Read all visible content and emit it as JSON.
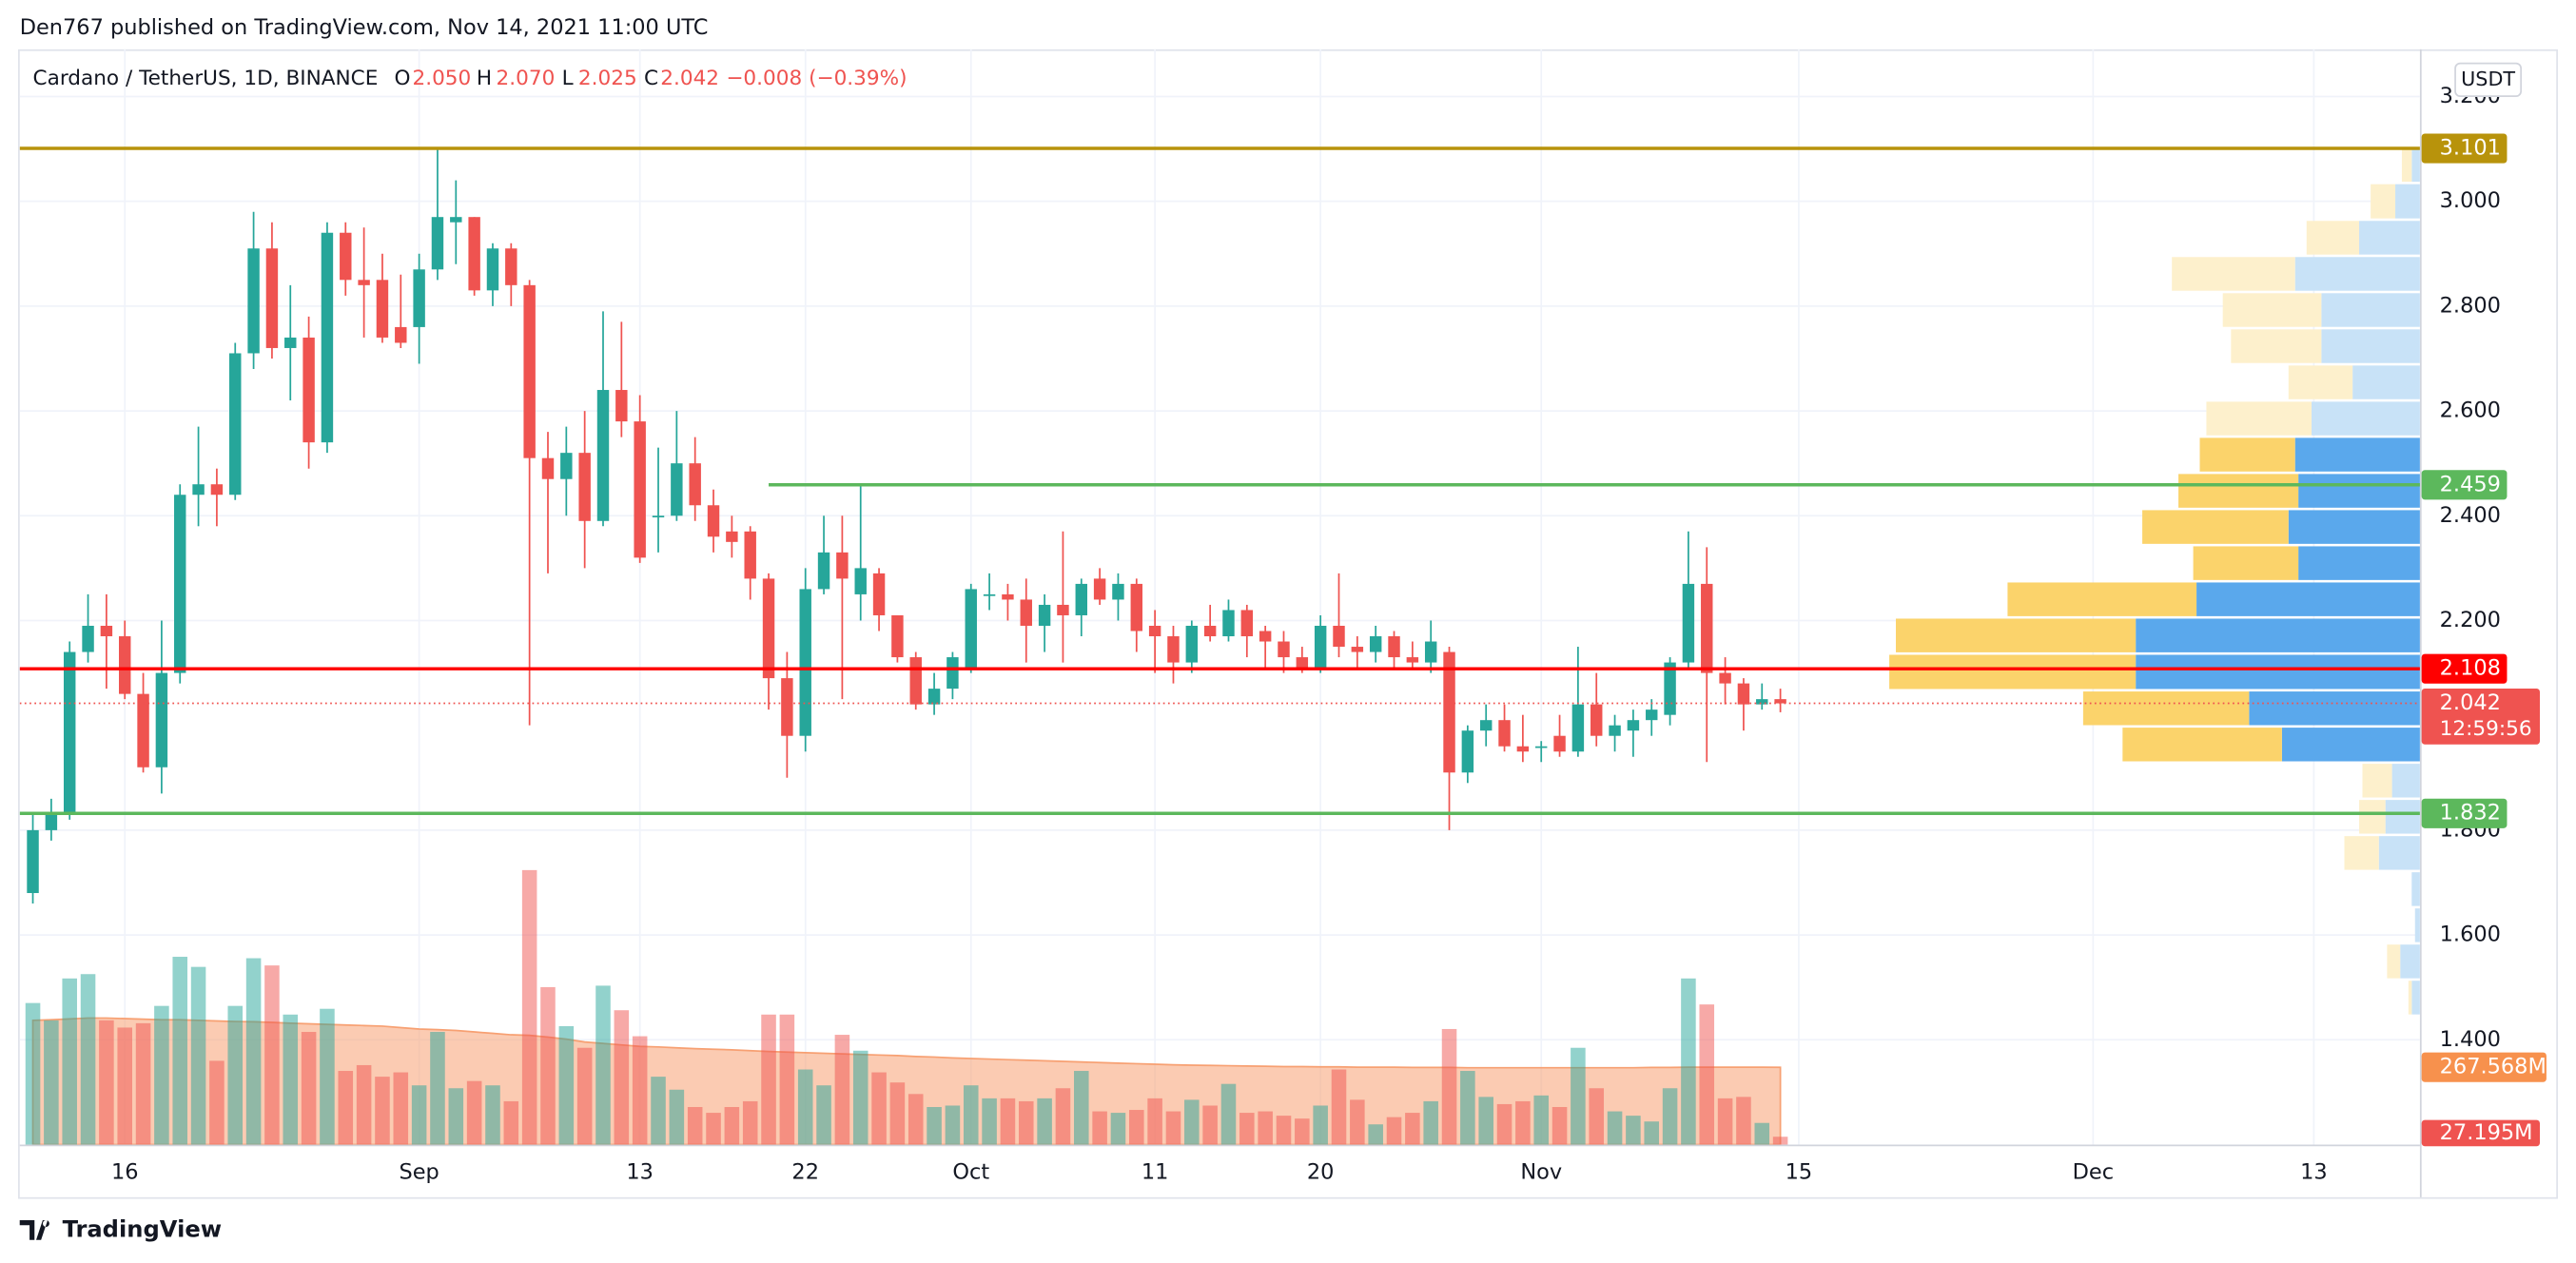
{
  "header": {
    "byline": "Den767 published on TradingView.com, Nov 14, 2021 11:00 UTC",
    "logo": "TradingView",
    "currency": "USDT"
  },
  "chart_data": {
    "type": "candlestick",
    "title": "Cardano / TetherUS, 1D, BINANCE",
    "legend_keys": [
      "O",
      "H",
      "L",
      "C"
    ],
    "legend_values": [
      "2.050",
      "2.070",
      "2.025",
      "2.042"
    ],
    "legend_change": "−0.008 (−0.39%)",
    "countdown": "12:59:56",
    "up_color": "#26a69a",
    "down_color": "#ef5350",
    "categories": [
      null,
      null,
      null,
      null,
      null,
      "16",
      null,
      null,
      null,
      null,
      null,
      null,
      null,
      null,
      null,
      null,
      null,
      null,
      null,
      null,
      null,
      "Sep",
      null,
      null,
      null,
      null,
      null,
      null,
      null,
      null,
      null,
      null,
      null,
      "13",
      null,
      null,
      null,
      null,
      null,
      null,
      null,
      null,
      "22",
      null,
      null,
      null,
      null,
      null,
      null,
      null,
      null,
      "Oct",
      null,
      null,
      null,
      null,
      null,
      null,
      null,
      null,
      null,
      "11",
      null,
      null,
      null,
      null,
      null,
      null,
      null,
      null,
      "20",
      null,
      null,
      null,
      null,
      null,
      null,
      null,
      null,
      null,
      null,
      null,
      "Nov",
      null,
      null,
      null,
      null,
      null,
      null,
      null,
      null,
      null,
      null,
      null,
      null,
      null,
      "15",
      null,
      null,
      null,
      null,
      null,
      null,
      null,
      null,
      null,
      null,
      null,
      null,
      null,
      null,
      null,
      "Dec",
      null,
      null,
      null,
      null,
      null,
      null,
      null,
      null,
      null,
      null,
      null,
      "13",
      null,
      null,
      null,
      null,
      null
    ],
    "open": [
      1.68,
      1.8,
      1.83,
      2.14,
      2.19,
      2.17,
      2.06,
      1.92,
      2.1,
      2.44,
      2.46,
      2.44,
      2.71,
      2.91,
      2.72,
      2.74,
      2.54,
      2.94,
      2.85,
      2.85,
      2.76,
      2.76,
      2.87,
      2.96,
      2.97,
      2.83,
      2.91,
      2.84,
      2.51,
      2.47,
      2.52,
      2.39,
      2.64,
      2.58,
      2.4,
      2.4,
      2.5,
      2.42,
      2.37,
      2.37,
      2.28,
      2.09,
      1.98,
      2.26,
      2.33,
      2.25,
      2.29,
      2.21,
      2.13,
      2.04,
      2.07,
      2.11,
      2.25,
      2.25,
      2.24,
      2.19,
      2.23,
      2.21,
      2.28,
      2.24,
      2.27,
      2.19,
      2.17,
      2.12,
      2.19,
      2.17,
      2.22,
      2.18,
      2.16,
      2.13,
      2.11,
      2.19,
      2.15,
      2.14,
      2.17,
      2.13,
      2.12,
      2.14,
      1.91,
      1.99,
      2.01,
      1.96,
      1.96,
      1.98,
      1.95,
      2.04,
      1.98,
      1.99,
      2.01,
      2.02,
      2.12,
      2.27,
      2.1,
      2.08,
      2.04,
      2.05,
      null,
      null,
      null,
      null,
      null,
      null,
      null,
      null,
      null,
      null,
      null,
      null,
      null,
      null,
      null,
      null,
      null,
      null,
      null,
      null,
      null,
      null,
      null,
      null,
      null,
      null,
      null,
      null,
      null,
      null,
      null,
      null,
      null,
      null
    ],
    "high": [
      1.83,
      1.86,
      2.16,
      2.25,
      2.25,
      2.2,
      2.1,
      2.2,
      2.46,
      2.57,
      2.49,
      2.73,
      2.98,
      2.96,
      2.84,
      2.78,
      2.96,
      2.96,
      2.95,
      2.9,
      2.86,
      2.9,
      3.1,
      3.04,
      2.97,
      2.92,
      2.92,
      2.85,
      2.56,
      2.57,
      2.6,
      2.79,
      2.77,
      2.63,
      2.53,
      2.6,
      2.55,
      2.45,
      2.4,
      2.38,
      2.29,
      2.14,
      2.3,
      2.4,
      2.4,
      2.46,
      2.3,
      2.21,
      2.14,
      2.1,
      2.14,
      2.27,
      2.29,
      2.27,
      2.28,
      2.25,
      2.37,
      2.28,
      2.3,
      2.29,
      2.28,
      2.22,
      2.19,
      2.2,
      2.23,
      2.24,
      2.23,
      2.19,
      2.18,
      2.15,
      2.21,
      2.29,
      2.17,
      2.19,
      2.18,
      2.16,
      2.2,
      2.15,
      2.0,
      2.04,
      2.04,
      2.02,
      1.97,
      2.02,
      2.15,
      2.1,
      2.02,
      2.03,
      2.05,
      2.13,
      2.37,
      2.34,
      2.13,
      2.09,
      2.08,
      2.07,
      null,
      null,
      null,
      null,
      null,
      null,
      null,
      null,
      null,
      null,
      null,
      null,
      null,
      null,
      null,
      null,
      null,
      null,
      null,
      null,
      null,
      null,
      null,
      null,
      null,
      null,
      null,
      null,
      null,
      null,
      null,
      null,
      null,
      null
    ],
    "low": [
      1.66,
      1.78,
      1.82,
      2.12,
      2.07,
      2.05,
      1.91,
      1.87,
      2.08,
      2.38,
      2.38,
      2.43,
      2.68,
      2.7,
      2.62,
      2.49,
      2.52,
      2.82,
      2.74,
      2.73,
      2.72,
      2.69,
      2.85,
      2.88,
      2.82,
      2.8,
      2.8,
      2.0,
      2.29,
      2.4,
      2.3,
      2.38,
      2.55,
      2.31,
      2.33,
      2.39,
      2.39,
      2.33,
      2.32,
      2.24,
      2.03,
      1.9,
      1.95,
      2.25,
      2.05,
      2.2,
      2.18,
      2.12,
      2.03,
      2.02,
      2.05,
      2.1,
      2.22,
      2.2,
      2.12,
      2.14,
      2.12,
      2.17,
      2.23,
      2.2,
      2.14,
      2.1,
      2.08,
      2.1,
      2.16,
      2.16,
      2.13,
      2.11,
      2.1,
      2.1,
      2.1,
      2.13,
      2.11,
      2.12,
      2.11,
      2.11,
      2.1,
      1.8,
      1.89,
      1.96,
      1.95,
      1.93,
      1.93,
      1.94,
      1.94,
      1.96,
      1.95,
      1.94,
      1.98,
      2.0,
      2.11,
      1.93,
      2.04,
      1.99,
      2.03,
      2.025,
      null,
      null,
      null,
      null,
      null,
      null,
      null,
      null,
      null,
      null,
      null,
      null,
      null,
      null,
      null,
      null,
      null,
      null,
      null,
      null,
      null,
      null,
      null,
      null,
      null,
      null,
      null,
      null,
      null,
      null,
      null,
      null,
      null,
      null
    ],
    "close": [
      1.8,
      1.83,
      2.14,
      2.19,
      2.17,
      2.06,
      1.92,
      2.1,
      2.44,
      2.46,
      2.44,
      2.71,
      2.91,
      2.72,
      2.74,
      2.54,
      2.94,
      2.85,
      2.84,
      2.74,
      2.73,
      2.87,
      2.97,
      2.97,
      2.83,
      2.91,
      2.84,
      2.51,
      2.47,
      2.52,
      2.39,
      2.64,
      2.58,
      2.32,
      2.4,
      2.5,
      2.42,
      2.36,
      2.35,
      2.28,
      2.09,
      1.98,
      2.26,
      2.33,
      2.28,
      2.3,
      2.21,
      2.13,
      2.04,
      2.07,
      2.13,
      2.26,
      2.25,
      2.24,
      2.19,
      2.23,
      2.21,
      2.27,
      2.24,
      2.27,
      2.18,
      2.17,
      2.12,
      2.19,
      2.17,
      2.22,
      2.17,
      2.16,
      2.13,
      2.11,
      2.19,
      2.15,
      2.14,
      2.17,
      2.13,
      2.12,
      2.16,
      1.91,
      1.99,
      2.01,
      1.96,
      1.95,
      1.96,
      1.95,
      2.04,
      1.98,
      2.0,
      2.01,
      2.03,
      2.12,
      2.27,
      2.1,
      2.08,
      2.04,
      2.05,
      2.042,
      null,
      null,
      null,
      null,
      null,
      null,
      null,
      null,
      null,
      null,
      null,
      null,
      null,
      null,
      null,
      null,
      null,
      null,
      null,
      null,
      null,
      null,
      null,
      null,
      null,
      null,
      null,
      null,
      null,
      null,
      null,
      null,
      null,
      null
    ],
    "volume": [
      490,
      430,
      575,
      590,
      430,
      405,
      420,
      480,
      650,
      615,
      290,
      480,
      645,
      620,
      450,
      390,
      470,
      255,
      275,
      235,
      250,
      205,
      390,
      195,
      220,
      205,
      150,
      950,
      545,
      410,
      335,
      550,
      465,
      375,
      235,
      190,
      130,
      110,
      130,
      150,
      450,
      450,
      260,
      205,
      380,
      325,
      250,
      215,
      175,
      130,
      135,
      205,
      160,
      160,
      150,
      160,
      195,
      255,
      115,
      110,
      120,
      160,
      115,
      155,
      135,
      210,
      110,
      115,
      100,
      90,
      135,
      260,
      155,
      70,
      95,
      110,
      150,
      400,
      255,
      165,
      140,
      150,
      170,
      130,
      335,
      195,
      115,
      100,
      80,
      195,
      575,
      485,
      160,
      165,
      75,
      27.195,
      null,
      null,
      null,
      null,
      null,
      null,
      null,
      null,
      null,
      null,
      null,
      null,
      null,
      null,
      null,
      null,
      null,
      null,
      null,
      null,
      null,
      null,
      null,
      null,
      null,
      null,
      null,
      null,
      null,
      null,
      null,
      null,
      null,
      null
    ],
    "volume_ma": [
      430,
      432,
      435,
      438,
      438,
      436,
      434,
      432,
      432,
      430,
      428,
      426,
      425,
      423,
      420,
      418,
      416,
      414,
      412,
      410,
      405,
      400,
      398,
      395,
      390,
      385,
      380,
      378,
      372,
      365,
      355,
      350,
      345,
      340,
      338,
      335,
      332,
      330,
      328,
      325,
      322,
      320,
      318,
      316,
      314,
      312,
      310,
      308,
      305,
      303,
      300,
      298,
      296,
      294,
      292,
      290,
      288,
      286,
      284,
      282,
      280,
      278,
      276,
      275,
      274,
      273,
      272,
      271,
      270,
      270,
      269,
      269,
      268,
      268,
      268,
      267,
      267,
      267,
      266,
      266,
      266,
      266,
      266,
      266,
      266,
      266,
      266,
      266,
      267,
      267,
      268,
      268,
      268,
      268,
      268,
      267.568,
      null,
      null,
      null,
      null,
      null,
      null,
      null,
      null,
      null,
      null,
      null,
      null,
      null,
      null,
      null,
      null,
      null,
      null,
      null,
      null,
      null,
      null,
      null,
      null,
      null,
      null,
      null,
      null,
      null,
      null,
      null,
      null,
      null,
      null
    ],
    "volume_label": "27.195M",
    "volume_ma_label": "267.568M",
    "volume_ylim": [
      0,
      1000
    ],
    "volume_up_color": "rgba(38,166,154,0.5)",
    "volume_down_color": "rgba(239,83,80,0.5)",
    "volume_ma_color": "#f7a072",
    "ylim": [
      1.2,
      3.29
    ],
    "yticks": [
      {
        "value": 3.2,
        "label": "3.200"
      },
      {
        "value": 3.0,
        "label": "3.000"
      },
      {
        "value": 2.8,
        "label": "2.800"
      },
      {
        "value": 2.6,
        "label": "2.600"
      },
      {
        "value": 2.4,
        "label": "2.400"
      },
      {
        "value": 2.2,
        "label": "2.200"
      },
      {
        "value": 1.8,
        "label": "1.800"
      },
      {
        "value": 1.6,
        "label": "1.600"
      },
      {
        "value": 1.4,
        "label": "1.400"
      }
    ],
    "grid": true,
    "levels": [
      {
        "value": 3.101,
        "color": "#b8930b"
      },
      {
        "value": 2.459,
        "color": "#5cb85c",
        "from": 40
      },
      {
        "value": 2.108,
        "color": "#ff0000"
      },
      {
        "value": 1.832,
        "color": "#5cb85c"
      }
    ],
    "volume_profile": {
      "up_color": "#5aa8ec",
      "down_color": "#fbd36b",
      "up_color_outside": "#c8e2f7",
      "down_color_outside": "#fdf0cc",
      "value_area": [
        1.929,
        2.551
      ],
      "rows": [
        {
          "low": 3.035,
          "high": 3.104,
          "up": 5,
          "down": 6
        },
        {
          "low": 2.965,
          "high": 3.035,
          "up": 15,
          "down": 15
        },
        {
          "low": 2.896,
          "high": 2.965,
          "up": 37,
          "down": 32
        },
        {
          "low": 2.827,
          "high": 2.896,
          "up": 76,
          "down": 75
        },
        {
          "low": 2.758,
          "high": 2.827,
          "up": 60,
          "down": 60
        },
        {
          "low": 2.689,
          "high": 2.758,
          "up": 60,
          "down": 55
        },
        {
          "low": 2.62,
          "high": 2.689,
          "up": 41,
          "down": 39
        },
        {
          "low": 2.551,
          "high": 2.62,
          "up": 66,
          "down": 64
        },
        {
          "low": 2.482,
          "high": 2.551,
          "up": 76,
          "down": 58
        },
        {
          "low": 2.413,
          "high": 2.482,
          "up": 74,
          "down": 73
        },
        {
          "low": 2.344,
          "high": 2.413,
          "up": 80,
          "down": 89
        },
        {
          "low": 2.275,
          "high": 2.344,
          "up": 74,
          "down": 64
        },
        {
          "low": 2.206,
          "high": 2.275,
          "up": 136,
          "down": 115
        },
        {
          "low": 2.137,
          "high": 2.206,
          "up": 173,
          "down": 146
        },
        {
          "low": 2.067,
          "high": 2.137,
          "up": 173,
          "down": 150
        },
        {
          "low": 1.998,
          "high": 2.067,
          "up": 104,
          "down": 101
        },
        {
          "low": 1.929,
          "high": 1.998,
          "up": 84,
          "down": 97
        },
        {
          "low": 1.86,
          "high": 1.929,
          "up": 17,
          "down": 18
        },
        {
          "low": 1.791,
          "high": 1.86,
          "up": 21,
          "down": 16
        },
        {
          "low": 1.722,
          "high": 1.791,
          "up": 25,
          "down": 21
        },
        {
          "low": 1.653,
          "high": 1.722,
          "up": 5,
          "down": 0
        },
        {
          "low": 1.584,
          "high": 1.653,
          "up": 3,
          "down": 0
        },
        {
          "low": 1.515,
          "high": 1.584,
          "up": 12,
          "down": 8
        },
        {
          "low": 1.446,
          "high": 1.515,
          "up": 5,
          "down": 2
        }
      ]
    }
  }
}
